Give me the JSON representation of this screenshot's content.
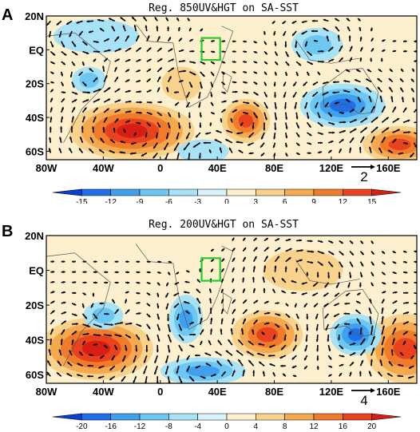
{
  "panels": [
    {
      "letter": "A",
      "title": "Reg. 850UV&HGT on  SA-SST",
      "lat_labels": [
        "20N",
        "EQ",
        "20S",
        "40S",
        "60S"
      ],
      "lon_labels": [
        "80W",
        "40W",
        "0",
        "40E",
        "80E",
        "120E",
        "160E"
      ],
      "ref_vector_label": "2",
      "colorbar_ticks": [
        "-15",
        "-12",
        "-9",
        "-6",
        "-3",
        "0",
        "3",
        "6",
        "9",
        "12",
        "15"
      ],
      "colorbar_colors": [
        "#0a3fd6",
        "#1f6fe8",
        "#3fa0ee",
        "#6cc8f2",
        "#a8e2f6",
        "#d8f3fb",
        "#fdf0cf",
        "#f9d28c",
        "#f5a94f",
        "#f07b2a",
        "#e8431e",
        "#d61e14"
      ],
      "blobs": [
        {
          "lon": -20,
          "lat": -48,
          "rx": 44,
          "ry": 17,
          "level": 15
        },
        {
          "lon": 60,
          "lat": -42,
          "rx": 17,
          "ry": 13,
          "level": 12
        },
        {
          "lon": 168,
          "lat": -56,
          "rx": 26,
          "ry": 11,
          "level": 12
        },
        {
          "lon": 128,
          "lat": -33,
          "rx": 30,
          "ry": 13,
          "level": -12
        },
        {
          "lon": 110,
          "lat": 3,
          "rx": 18,
          "ry": 10,
          "level": -6
        },
        {
          "lon": 30,
          "lat": -60,
          "rx": 18,
          "ry": 7,
          "level": -3
        },
        {
          "lon": -50,
          "lat": -18,
          "rx": 12,
          "ry": 8,
          "level": -6
        },
        {
          "lon": -45,
          "lat": 8,
          "rx": 30,
          "ry": 10,
          "level": -3
        },
        {
          "lon": 15,
          "lat": -20,
          "rx": 14,
          "ry": 10,
          "level": 3
        }
      ]
    },
    {
      "letter": "B",
      "title": "Reg. 200UV&HGT on  SA-SST",
      "lat_labels": [
        "20N",
        "EQ",
        "20S",
        "40S",
        "60S"
      ],
      "lon_labels": [
        "80W",
        "40W",
        "0",
        "40E",
        "80E",
        "120E",
        "160E"
      ],
      "ref_vector_label": "4",
      "colorbar_ticks": [
        "-20",
        "-16",
        "-12",
        "-8",
        "-4",
        "0",
        "4",
        "8",
        "12",
        "16",
        "20"
      ],
      "colorbar_colors": [
        "#0a3fd6",
        "#1f6fe8",
        "#3fa0ee",
        "#6cc8f2",
        "#a8e2f6",
        "#d8f3fb",
        "#fdf0cf",
        "#f9d28c",
        "#f5a94f",
        "#f07b2a",
        "#e8431e",
        "#d61e14"
      ],
      "blobs": [
        {
          "lon": -45,
          "lat": -45,
          "rx": 40,
          "ry": 18,
          "level": 20
        },
        {
          "lon": 75,
          "lat": -37,
          "rx": 25,
          "ry": 14,
          "level": 16
        },
        {
          "lon": 172,
          "lat": -45,
          "rx": 28,
          "ry": 20,
          "level": 16
        },
        {
          "lon": 18,
          "lat": -28,
          "rx": 12,
          "ry": 14,
          "level": -12
        },
        {
          "lon": 137,
          "lat": -37,
          "rx": 18,
          "ry": 12,
          "level": -16
        },
        {
          "lon": -40,
          "lat": -26,
          "rx": 14,
          "ry": 8,
          "level": -8
        },
        {
          "lon": 30,
          "lat": -58,
          "rx": 30,
          "ry": 8,
          "level": -12
        },
        {
          "lon": 100,
          "lat": 0,
          "rx": 28,
          "ry": 12,
          "level": 4
        }
      ]
    }
  ],
  "study_box": {
    "lon0": 29,
    "lon1": 42,
    "lat0": -6,
    "lat1": 7,
    "color": "#22cc22"
  }
}
